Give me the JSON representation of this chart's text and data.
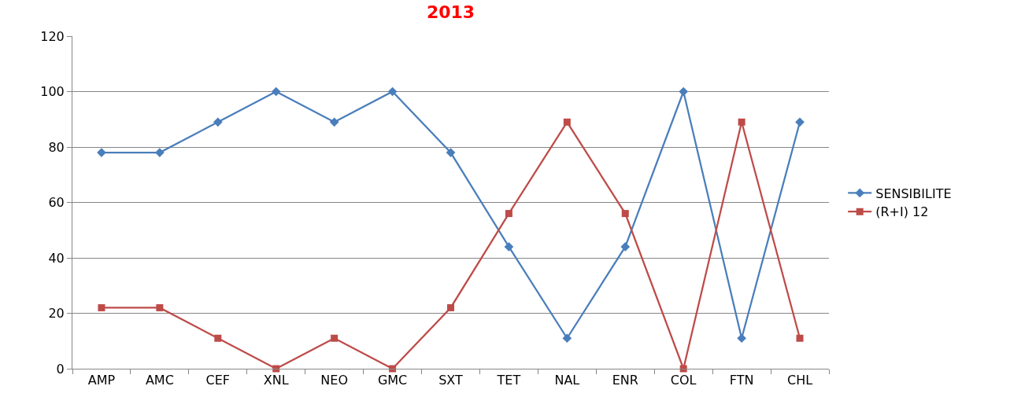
{
  "chart_data": {
    "type": "line",
    "title": "2013",
    "categories": [
      "AMP",
      "AMC",
      "CEF",
      "XNL",
      "NEO",
      "GMC",
      "SXT",
      "TET",
      "NAL",
      "ENR",
      "COL",
      "FTN",
      "CHL"
    ],
    "series": [
      {
        "name": "SENSIBILITE",
        "color": "#4a7ebb",
        "marker": "diamond",
        "values": [
          78,
          78,
          89,
          100,
          89,
          100,
          78,
          44,
          11,
          44,
          100,
          11,
          89
        ]
      },
      {
        "name": "(R+I) 12",
        "color": "#be4b48",
        "marker": "square",
        "values": [
          22,
          22,
          11,
          0,
          11,
          0,
          22,
          56,
          89,
          56,
          0,
          89,
          11
        ]
      }
    ],
    "ylim": [
      0,
      120
    ],
    "yticks": [
      0,
      20,
      40,
      60,
      80,
      100,
      120
    ],
    "grid": "y",
    "legend": "right",
    "line_style": "solid"
  }
}
